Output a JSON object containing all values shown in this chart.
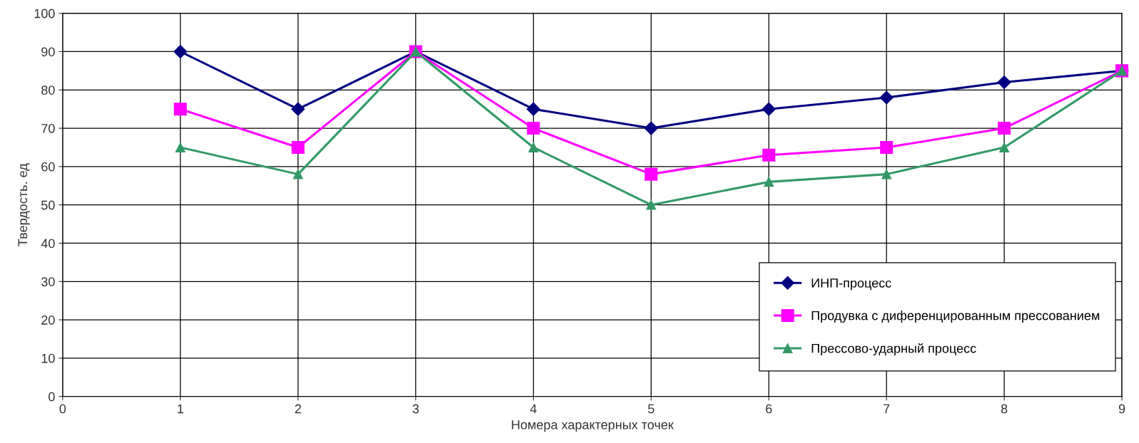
{
  "chart_data": {
    "type": "line",
    "xlabel": "Номера характерных точек",
    "ylabel": "Твердость. ед",
    "x": [
      1,
      2,
      3,
      4,
      5,
      6,
      7,
      8,
      9
    ],
    "series": [
      {
        "name": "ИНП-процесс",
        "color": "#000080",
        "marker": "diamond",
        "values": [
          90,
          75,
          90,
          75,
          70,
          75,
          78,
          82,
          85
        ]
      },
      {
        "name": "Продувка с диференцированным прессованием",
        "color": "#ff00ff",
        "marker": "square",
        "values": [
          75,
          65,
          90,
          70,
          58,
          63,
          65,
          70,
          85
        ]
      },
      {
        "name": "Прессово-ударный процесс",
        "color": "#339966",
        "marker": "triangle",
        "values": [
          65,
          58,
          90,
          65,
          50,
          56,
          58,
          65,
          85
        ]
      }
    ],
    "xlim": [
      0,
      9
    ],
    "xticks": [
      0,
      1,
      2,
      3,
      4,
      5,
      6,
      7,
      8,
      9
    ],
    "ylim": [
      0,
      100
    ],
    "yticks": [
      0,
      10,
      20,
      30,
      40,
      50,
      60,
      70,
      80,
      90,
      100
    ],
    "grid": true,
    "legend": "bottom right",
    "line_style": "solid"
  }
}
